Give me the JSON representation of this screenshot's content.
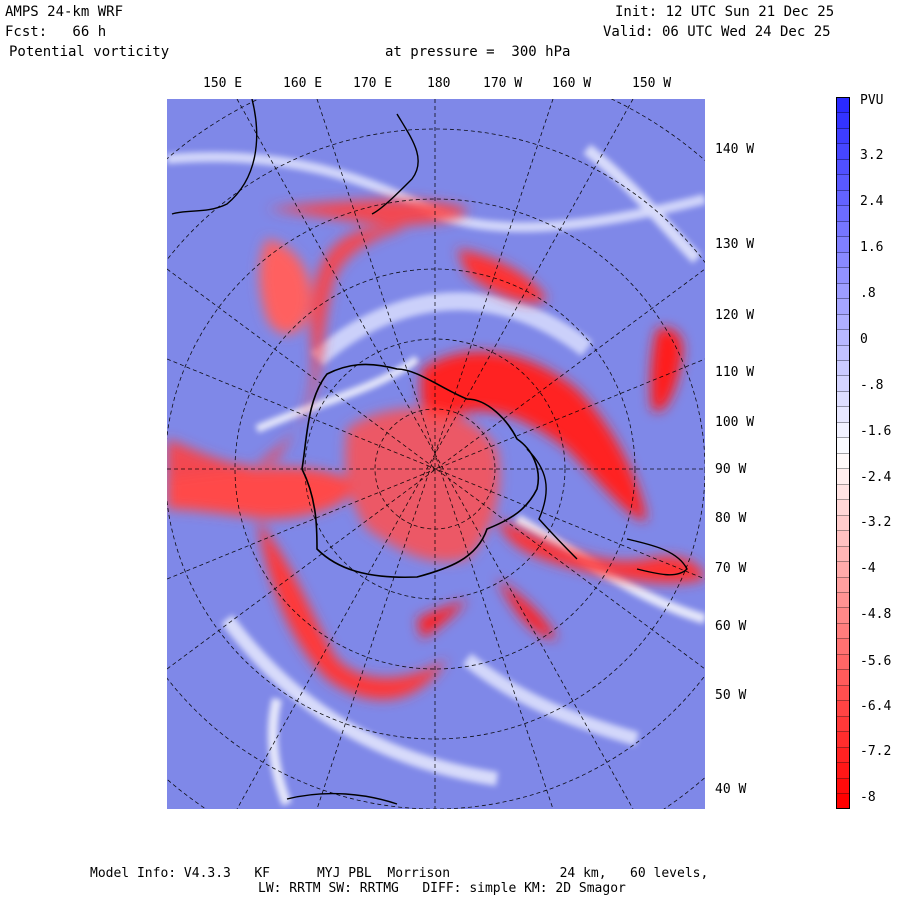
{
  "header": {
    "model": "AMPS 24-km WRF",
    "forecast": "Fcst:   66 h",
    "field": "Potential vorticity",
    "level": "at pressure =  300 hPa",
    "init": "Init: 12 UTC Sun 21 Dec 25",
    "valid": "Valid: 06 UTC Wed 24 Dec 25"
  },
  "lon_labels": [
    "150 E",
    "160 E",
    "170 E",
    "180",
    "170 W",
    "160 W",
    "150 W"
  ],
  "lat_labels": [
    "140 W",
    "130 W",
    "120 W",
    "110 W",
    "100 W",
    "90 W",
    "80 W",
    "70 W",
    "60 W",
    "50 W",
    "40 W"
  ],
  "colorbar": {
    "unit": "PVU",
    "labels": [
      "3.2",
      "2.4",
      "1.6",
      ".8",
      "0",
      "-.8",
      "-1.6",
      "-2.4",
      "-3.2",
      "-4",
      "-4.8",
      "-5.6",
      "-6.4",
      "-7.2",
      "-8"
    ],
    "colors": {
      "positive": "#2a2aff",
      "neutral": "#ffffff",
      "negative": "#ff0000",
      "background_blue": "#7f88e8"
    }
  },
  "footer": {
    "line1": "Model Info: V4.3.3   KF      MYJ PBL  Morrison              24 km,   60 levels,",
    "line2": "LW: RRTM SW: RRTMG   DIFF: simple KM: 2D Smagor"
  }
}
